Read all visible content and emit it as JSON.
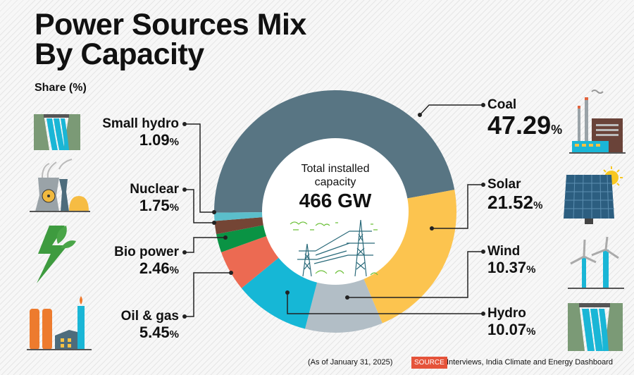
{
  "header": {
    "title_line1": "Power Sources Mix",
    "title_line2": "By Capacity",
    "subtitle": "Share (%)"
  },
  "center": {
    "line1": "Total installed",
    "line2": "capacity",
    "total": "466 GW"
  },
  "footer": {
    "date": "(As of January 31, 2025)",
    "source_badge": "SOURCE",
    "source_text": "Interviews, India Climate and Energy Dashboard"
  },
  "labels": {
    "coal": {
      "name": "Coal",
      "value": "47.29",
      "unit": "%"
    },
    "solar": {
      "name": "Solar",
      "value": "21.52",
      "unit": "%"
    },
    "wind": {
      "name": "Wind",
      "value": "10.37",
      "unit": "%"
    },
    "hydro": {
      "name": "Hydro",
      "value": "10.07",
      "unit": "%"
    },
    "oil_gas": {
      "name": "Oil & gas",
      "value": "5.45",
      "unit": "%"
    },
    "bio_power": {
      "name": "Bio power",
      "value": "2.46",
      "unit": "%"
    },
    "nuclear": {
      "name": "Nuclear",
      "value": "1.75",
      "unit": "%"
    },
    "small_hydro": {
      "name": "Small hydro",
      "value": "1.09",
      "unit": "%"
    }
  },
  "icons": [
    "coal-factory-icon",
    "solar-panel-icon",
    "wind-turbine-icon",
    "hydro-dam-icon",
    "oil-gas-refinery-icon",
    "bio-power-leaf-bolt-icon",
    "nuclear-plant-icon",
    "small-hydro-dam-icon",
    "transmission-tower-icon"
  ],
  "chart_data": {
    "type": "pie",
    "donut": true,
    "title": "Power Sources Mix By Capacity",
    "subtitle": "Share (%)",
    "center_label": "Total installed capacity 466 GW",
    "categories": [
      "Coal",
      "Solar",
      "Wind",
      "Hydro",
      "Oil & gas",
      "Bio power",
      "Nuclear",
      "Small hydro"
    ],
    "values": [
      47.29,
      21.52,
      10.37,
      10.07,
      5.45,
      2.46,
      1.75,
      1.09
    ],
    "colors": [
      "#587583",
      "#fcc44f",
      "#b2bec6",
      "#16b7d6",
      "#ec6a52",
      "#0a9344",
      "#744535",
      "#5bbecb"
    ],
    "unit": "%"
  }
}
